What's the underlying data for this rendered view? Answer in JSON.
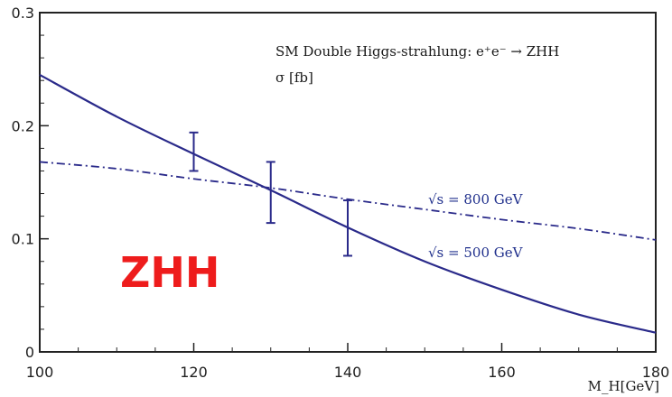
{
  "chart_data": {
    "type": "line",
    "title": "SM Double Higgs-strahlung: e⁺e⁻ → ZHH",
    "ylabel": "σ [fb]",
    "xlabel": "M_H[GeV]",
    "xlim": [
      100,
      180
    ],
    "ylim": [
      0,
      0.3
    ],
    "x_ticks": [
      "100",
      "120",
      "140",
      "160",
      "180"
    ],
    "y_ticks": [
      "0",
      "0.1",
      "0.2",
      "0.3"
    ],
    "x_tick_values": [
      100,
      120,
      140,
      160,
      180
    ],
    "y_tick_values": [
      0,
      0.1,
      0.2,
      0.3
    ],
    "series": [
      {
        "name": "√s = 500 GeV",
        "style": "solid",
        "x": [
          100,
          110,
          120,
          130,
          140,
          150,
          160,
          170,
          180
        ],
        "y": [
          0.245,
          0.208,
          0.175,
          0.143,
          0.11,
          0.08,
          0.055,
          0.033,
          0.017
        ]
      },
      {
        "name": "√s = 800 GeV",
        "style": "dash-dot",
        "x": [
          100,
          110,
          120,
          130,
          140,
          150,
          160,
          170,
          180
        ],
        "y": [
          0.168,
          0.162,
          0.153,
          0.145,
          0.135,
          0.126,
          0.117,
          0.109,
          0.099
        ]
      }
    ],
    "error_bars": [
      {
        "x": 120,
        "y": 0.176,
        "low": 0.16,
        "high": 0.194
      },
      {
        "x": 130,
        "y": 0.142,
        "low": 0.114,
        "high": 0.168
      },
      {
        "x": 140,
        "y": 0.11,
        "low": 0.085,
        "high": 0.134
      }
    ],
    "overlay_text": "ZHH",
    "colors": {
      "curve": "#2a2a8a",
      "overlay": "#ee1c1c"
    }
  }
}
